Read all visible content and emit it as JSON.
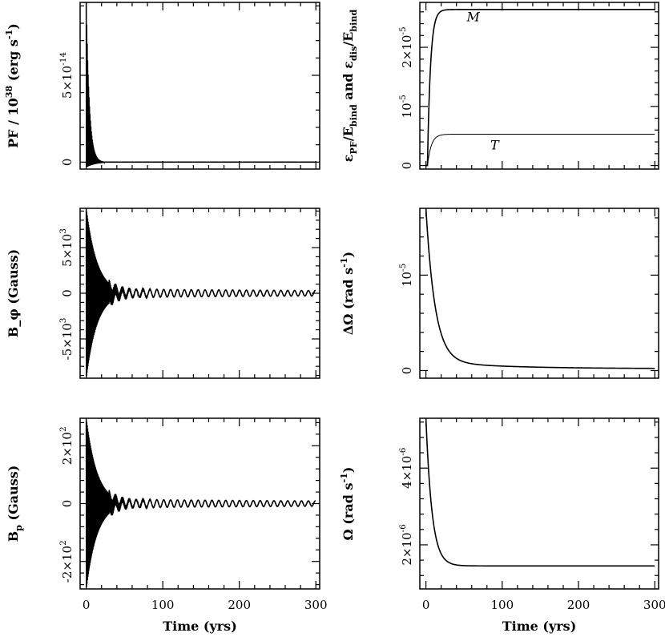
{
  "chart_data": [
    {
      "id": "pf",
      "type": "line",
      "ylabel": "PF / 10^38 (erg s^-1)",
      "xlim": [
        -8,
        305
      ],
      "ylim": [
        -4e-15,
        9.2e-14
      ],
      "yticks": [
        0,
        5e-14
      ],
      "ytick_labels": [
        "0",
        "5×10^-14"
      ],
      "xtick_labels": [],
      "series": [
        {
          "kind": "damped_oscillation",
          "amp": 9.2e-14,
          "tau": 4,
          "period": 0.6,
          "t_end": 300,
          "baseline": 0,
          "clip_low": -3e-15
        }
      ]
    },
    {
      "id": "efrac",
      "type": "line",
      "ylabel": "ε_PF/E_bind and ε_dis/E_bind",
      "xlim": [
        -8,
        305
      ],
      "ylim": [
        -6e-07,
        2.76e-05
      ],
      "yticks": [
        0,
        1e-05,
        2e-05
      ],
      "ytick_labels": [
        "0",
        "10^-5",
        "2×10^-5"
      ],
      "xtick_labels": [],
      "annotations": [
        {
          "text": "M",
          "x": 62,
          "y": 2.44e-05
        },
        {
          "text": "T",
          "x": 90,
          "y": 2.7e-06
        }
      ],
      "series": [
        {
          "name": "M",
          "kind": "saturation",
          "t0": 2,
          "plateau": 2.64e-05,
          "tau": 4,
          "t_end": 300
        },
        {
          "name": "T",
          "kind": "saturation",
          "t0": 2,
          "plateau": 5.3e-06,
          "tau": 5,
          "t_end": 300
        }
      ]
    },
    {
      "id": "bphi",
      "type": "line",
      "ylabel": "B_φ (Gauss)",
      "xlim": [
        -8,
        305
      ],
      "ylim": [
        -9300.0,
        9300.0
      ],
      "yticks": [
        -5000,
        0,
        5000
      ],
      "ytick_labels": [
        "-5×10^3",
        "0",
        "5×10^3"
      ],
      "xtick_labels": [],
      "series": [
        {
          "kind": "damped_oscillation_tail",
          "amp": 9300.0,
          "tau": 14,
          "period": 0.6,
          "t_end": 300,
          "tail_amp": 450,
          "tail_period": 9,
          "tail_decay": 600,
          "tail_start": 50
        }
      ]
    },
    {
      "id": "domega",
      "type": "line",
      "ylabel": "ΔΩ (rad s^-1)",
      "xlim": [
        -8,
        305
      ],
      "ylim": [
        -8e-07,
        1.7e-05
      ],
      "yticks": [
        0,
        1e-05
      ],
      "ytick_labels": [
        "0",
        "10^-5"
      ],
      "xtick_labels": [],
      "series": [
        {
          "kind": "decay",
          "start": 1.7e-05,
          "floor": 2e-07,
          "tau": 12,
          "slow_amp": 8e-07,
          "slow_tau": 90,
          "t_end": 300
        }
      ]
    },
    {
      "id": "bp",
      "type": "line",
      "ylabel": "B_p (Gauss)",
      "xlim": [
        -8,
        305
      ],
      "ylim": [
        -295.0,
        295.0
      ],
      "yticks": [
        -200,
        0,
        200
      ],
      "ytick_labels": [
        "-2×10^2",
        "0",
        "2×10^2"
      ],
      "xtick_labels": [
        "0",
        "100",
        "200",
        "300"
      ],
      "xlabel": "Time (yrs)",
      "series": [
        {
          "kind": "damped_oscillation_tail",
          "amp": 295.0,
          "tau": 14,
          "period": 0.6,
          "t_end": 300,
          "tail_amp": 14,
          "tail_period": 9,
          "tail_decay": 600,
          "tail_start": 50
        }
      ]
    },
    {
      "id": "omega",
      "type": "line",
      "ylabel": "Ω (rad s^-1)",
      "xlim": [
        -8,
        305
      ],
      "ylim": [
        8.5e-07,
        5.3e-06
      ],
      "yticks": [
        2e-06,
        4e-06
      ],
      "ytick_labels": [
        "2×10^-6",
        "4×10^-6"
      ],
      "xtick_labels": [
        "0",
        "100",
        "200",
        "300"
      ],
      "xlabel": "Time (yrs)",
      "series": [
        {
          "kind": "decay",
          "start": 5.3e-06,
          "floor": 1.45e-06,
          "tau": 8,
          "slow_amp": 0,
          "slow_tau": 1,
          "t_end": 300
        }
      ]
    }
  ]
}
